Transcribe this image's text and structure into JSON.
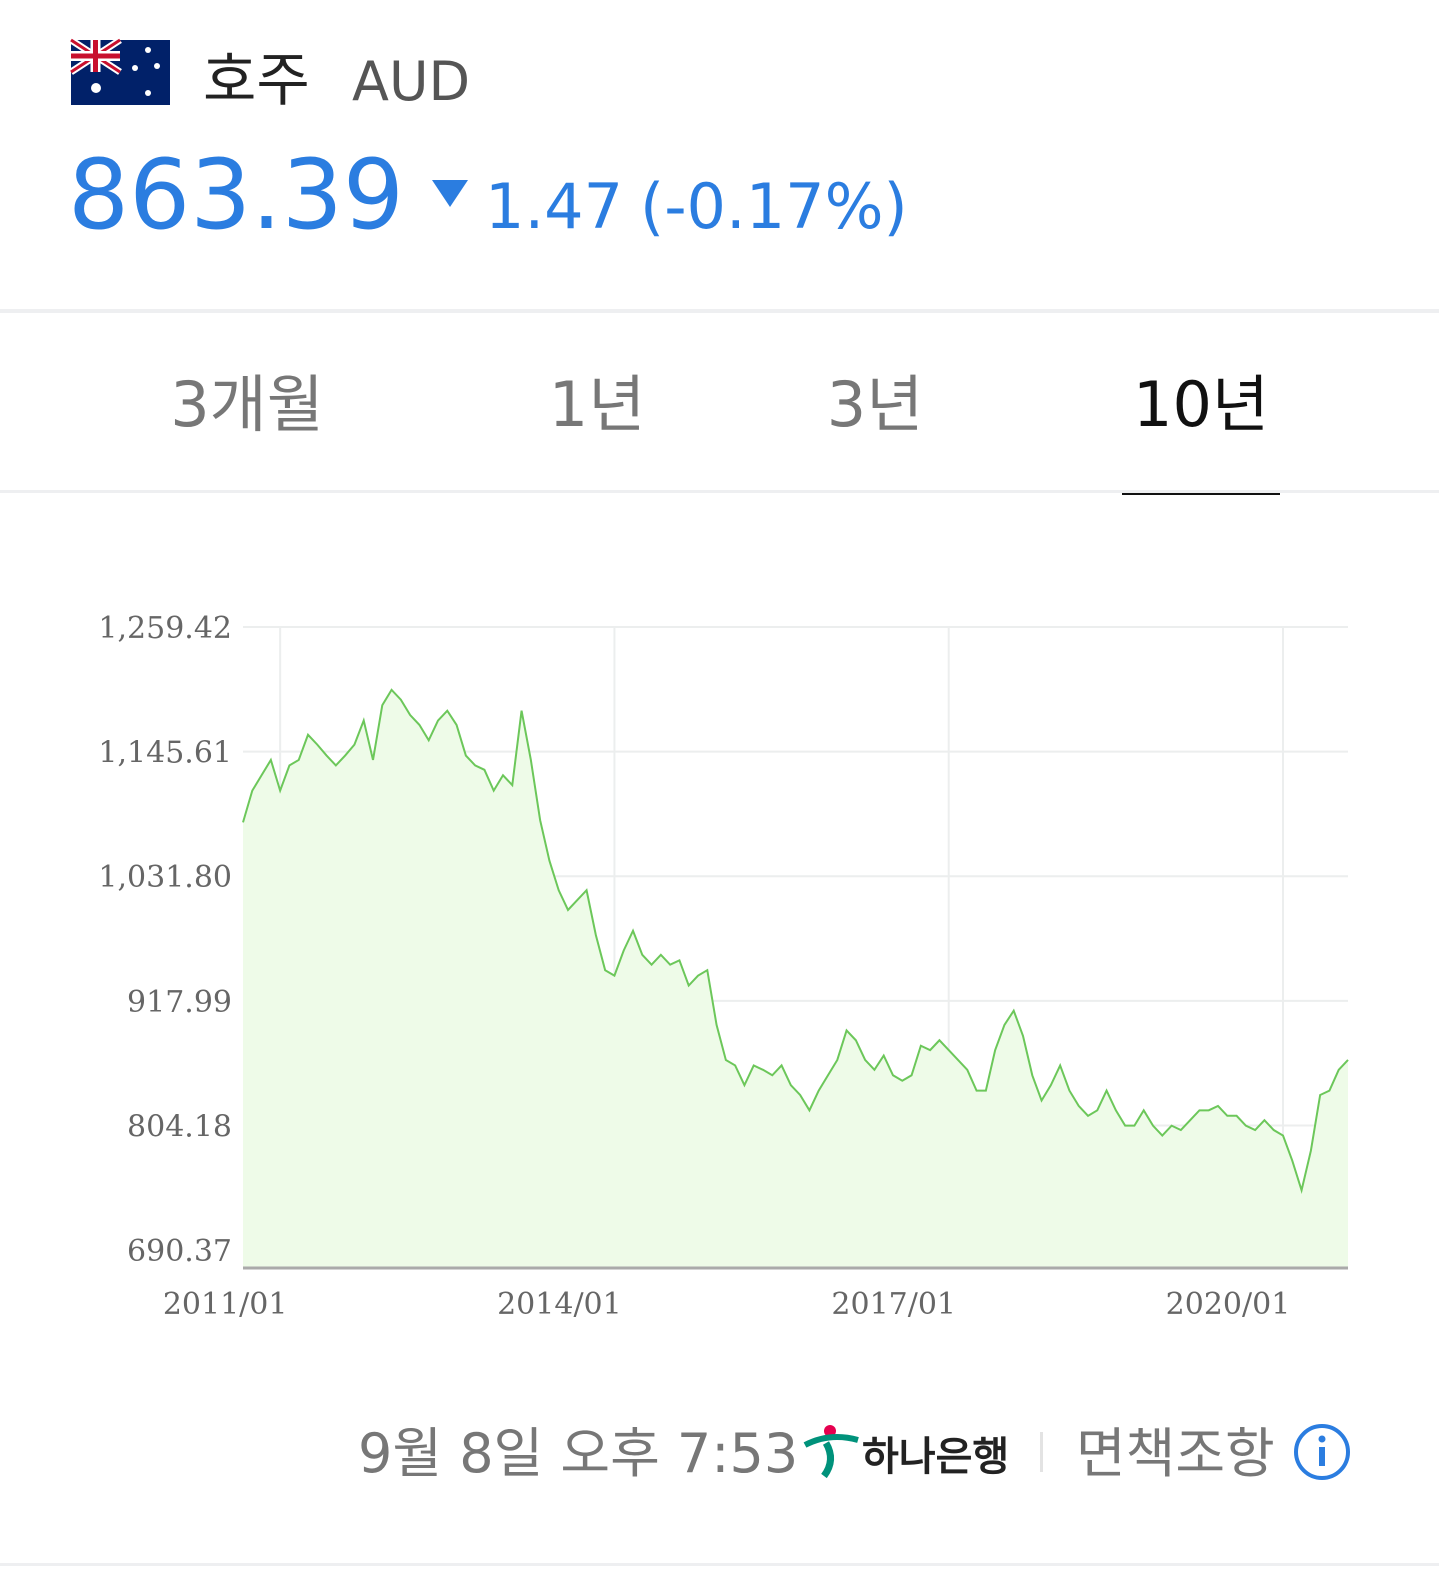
{
  "header": {
    "currency": "호주",
    "code": "AUD",
    "price": "863.39",
    "change": "1.47",
    "change_pct": "(-0.17%)"
  },
  "tabs": {
    "items": [
      "3개월",
      "1년",
      "3년",
      "10년"
    ],
    "selected": 3
  },
  "chart_data": {
    "type": "area",
    "x": [
      "2010/09",
      "2010/10",
      "2010/11",
      "2010/12",
      "2011/01",
      "2011/02",
      "2011/03",
      "2011/04",
      "2011/05",
      "2011/06",
      "2011/07",
      "2011/08",
      "2011/09",
      "2011/10",
      "2011/11",
      "2011/12",
      "2012/01",
      "2012/02",
      "2012/03",
      "2012/04",
      "2012/05",
      "2012/06",
      "2012/07",
      "2012/08",
      "2012/09",
      "2012/10",
      "2012/11",
      "2012/12",
      "2013/01",
      "2013/02",
      "2013/03",
      "2013/04",
      "2013/05",
      "2013/06",
      "2013/07",
      "2013/08",
      "2013/09",
      "2013/10",
      "2013/11",
      "2013/12",
      "2014/01",
      "2014/02",
      "2014/03",
      "2014/04",
      "2014/05",
      "2014/06",
      "2014/07",
      "2014/08",
      "2014/09",
      "2014/10",
      "2014/11",
      "2014/12",
      "2015/01",
      "2015/02",
      "2015/03",
      "2015/04",
      "2015/05",
      "2015/06",
      "2015/07",
      "2015/08",
      "2015/09",
      "2015/10",
      "2015/11",
      "2015/12",
      "2016/01",
      "2016/02",
      "2016/03",
      "2016/04",
      "2016/05",
      "2016/06",
      "2016/07",
      "2016/08",
      "2016/09",
      "2016/10",
      "2016/11",
      "2016/12",
      "2017/01",
      "2017/02",
      "2017/03",
      "2017/04",
      "2017/05",
      "2017/06",
      "2017/07",
      "2017/08",
      "2017/09",
      "2017/10",
      "2017/11",
      "2017/12",
      "2018/01",
      "2018/02",
      "2018/03",
      "2018/04",
      "2018/05",
      "2018/06",
      "2018/07",
      "2018/08",
      "2018/09",
      "2018/10",
      "2018/11",
      "2018/12",
      "2019/01",
      "2019/02",
      "2019/03",
      "2019/04",
      "2019/05",
      "2019/06",
      "2019/07",
      "2019/08",
      "2019/09",
      "2019/10",
      "2019/11",
      "2019/12",
      "2020/01",
      "2020/02",
      "2020/03",
      "2020/04",
      "2020/05",
      "2020/06",
      "2020/07",
      "2020/08"
    ],
    "values": [
      1081,
      1110,
      1124,
      1138,
      1110,
      1133,
      1138,
      1161,
      1152,
      1142,
      1133,
      1142,
      1152,
      1174,
      1138,
      1188,
      1202,
      1193,
      1179,
      1170,
      1156,
      1174,
      1183,
      1170,
      1142,
      1133,
      1129,
      1110,
      1124,
      1115,
      1183,
      1138,
      1083,
      1046,
      1019,
      1001,
      1010,
      1019,
      978,
      946,
      941,
      964,
      982,
      960,
      951,
      960,
      951,
      955,
      932,
      941,
      946,
      896,
      864,
      859,
      841,
      859,
      855,
      850,
      859,
      841,
      832,
      818,
      836,
      850,
      864,
      891,
      882,
      864,
      855,
      868,
      850,
      845,
      850,
      877,
      873,
      882,
      873,
      864,
      855,
      836,
      836,
      873,
      896,
      909,
      886,
      850,
      827,
      841,
      859,
      836,
      822,
      813,
      818,
      836,
      818,
      804,
      804,
      818,
      804,
      795,
      804,
      800,
      809,
      818,
      818,
      822,
      813,
      813,
      804,
      800,
      809,
      800,
      795,
      772,
      745,
      781,
      832,
      836,
      855,
      864
    ],
    "color": "#6cc75a",
    "fill_color": "#eefbe8",
    "ylim": [
      674,
      1259.42
    ],
    "yticks": [
      {
        "value": 1259.42,
        "label": "1,259.42"
      },
      {
        "value": 1145.61,
        "label": "1,145.61"
      },
      {
        "value": 1031.8,
        "label": "1,031.80"
      },
      917.99,
      804.18,
      690.37
    ],
    "xticks": [
      "2011/01",
      "2014/01",
      "2017/01",
      "2020/01"
    ],
    "grid": true
  },
  "footer": {
    "timestamp": "9월 8일 오후 7:53",
    "bank": "하나은행",
    "disclaimer": "면책조항"
  }
}
